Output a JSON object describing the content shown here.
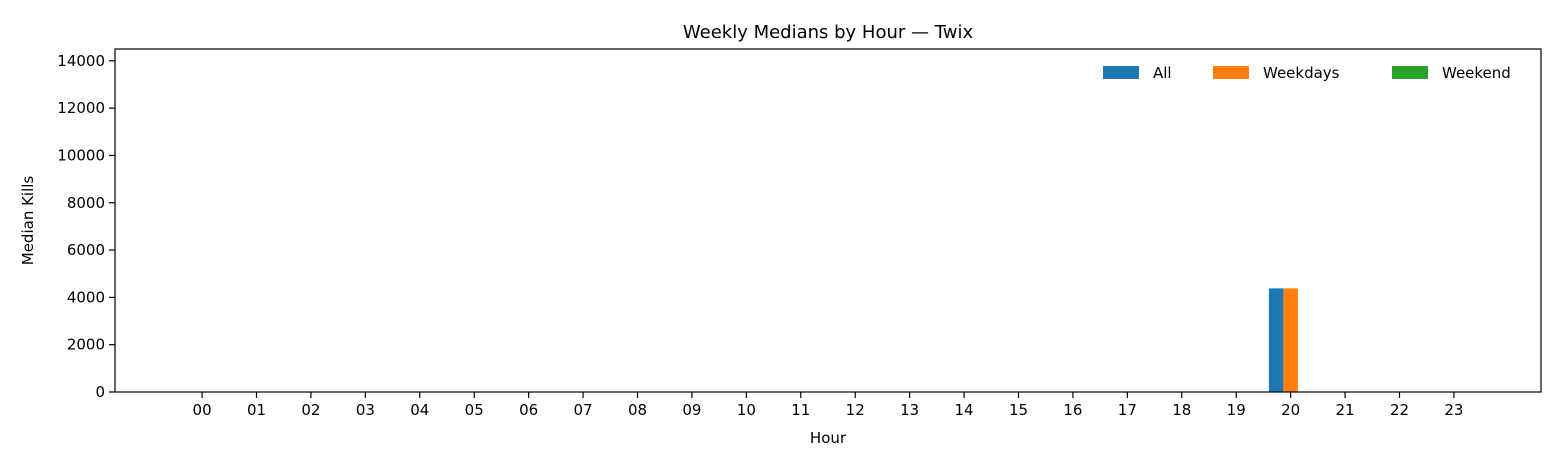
{
  "chart_data": {
    "type": "bar",
    "title": "Weekly Medians by Hour — Twix",
    "xlabel": "Hour",
    "ylabel": "Median Kills",
    "categories": [
      "00",
      "01",
      "02",
      "03",
      "04",
      "05",
      "06",
      "07",
      "08",
      "09",
      "10",
      "11",
      "12",
      "13",
      "14",
      "15",
      "16",
      "17",
      "18",
      "19",
      "20",
      "21",
      "22",
      "23"
    ],
    "series": [
      {
        "name": "All",
        "color": "#1f77b4",
        "values": [
          0,
          0,
          0,
          0,
          0,
          0,
          0,
          0,
          0,
          0,
          0,
          0,
          0,
          0,
          0,
          0,
          0,
          0,
          0,
          0,
          4380,
          0,
          0,
          0
        ]
      },
      {
        "name": "Weekdays",
        "color": "#ff7f0e",
        "values": [
          0,
          0,
          0,
          0,
          0,
          0,
          0,
          0,
          0,
          0,
          0,
          0,
          0,
          0,
          0,
          0,
          0,
          0,
          0,
          0,
          4380,
          0,
          0,
          0
        ]
      },
      {
        "name": "Weekend",
        "color": "#2ca02c",
        "values": [
          0,
          0,
          0,
          0,
          0,
          0,
          0,
          0,
          0,
          0,
          0,
          0,
          0,
          0,
          0,
          0,
          0,
          0,
          0,
          0,
          0,
          0,
          0,
          0
        ]
      }
    ],
    "ylim": [
      0,
      14500
    ],
    "yticks": [
      0,
      2000,
      4000,
      6000,
      8000,
      10000,
      12000,
      14000
    ],
    "grid": false,
    "legend_position": "top-right"
  }
}
